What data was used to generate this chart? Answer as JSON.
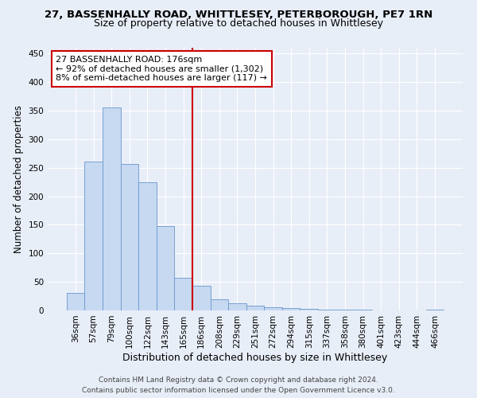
{
  "title_line1": "27, BASSENHALLY ROAD, WHITTLESEY, PETERBOROUGH, PE7 1RN",
  "title_line2": "Size of property relative to detached houses in Whittlesey",
  "xlabel": "Distribution of detached houses by size in Whittlesey",
  "ylabel": "Number of detached properties",
  "bar_labels": [
    "36sqm",
    "57sqm",
    "79sqm",
    "100sqm",
    "122sqm",
    "143sqm",
    "165sqm",
    "186sqm",
    "208sqm",
    "229sqm",
    "251sqm",
    "272sqm",
    "294sqm",
    "315sqm",
    "337sqm",
    "358sqm",
    "380sqm",
    "401sqm",
    "423sqm",
    "444sqm",
    "466sqm"
  ],
  "bar_values": [
    30,
    260,
    355,
    257,
    225,
    148,
    57,
    43,
    19,
    12,
    9,
    6,
    4,
    3,
    2,
    1,
    1,
    0,
    0,
    0,
    2
  ],
  "bar_color": "#c6d9f1",
  "bar_edge_color": "#6b96cc",
  "annotation_text_line1": "27 BASSENHALLY ROAD: 176sqm",
  "annotation_text_line2": "← 92% of detached houses are smaller (1,302)",
  "annotation_text_line3": "8% of semi-detached houses are larger (117) →",
  "annotation_box_facecolor": "#ffffff",
  "annotation_box_edgecolor": "#cc0000",
  "vline_color": "#cc0000",
  "vline_x": 6.5,
  "ylim": [
    0,
    460
  ],
  "yticks": [
    0,
    50,
    100,
    150,
    200,
    250,
    300,
    350,
    400,
    450
  ],
  "background_color": "#e8eef8",
  "footer_line1": "Contains HM Land Registry data © Crown copyright and database right 2024.",
  "footer_line2": "Contains public sector information licensed under the Open Government Licence v3.0.",
  "title_fontsize": 9.5,
  "subtitle_fontsize": 9,
  "ylabel_fontsize": 8.5,
  "xlabel_fontsize": 9,
  "tick_fontsize": 7.5,
  "annotation_fontsize": 8,
  "footer_fontsize": 6.5
}
